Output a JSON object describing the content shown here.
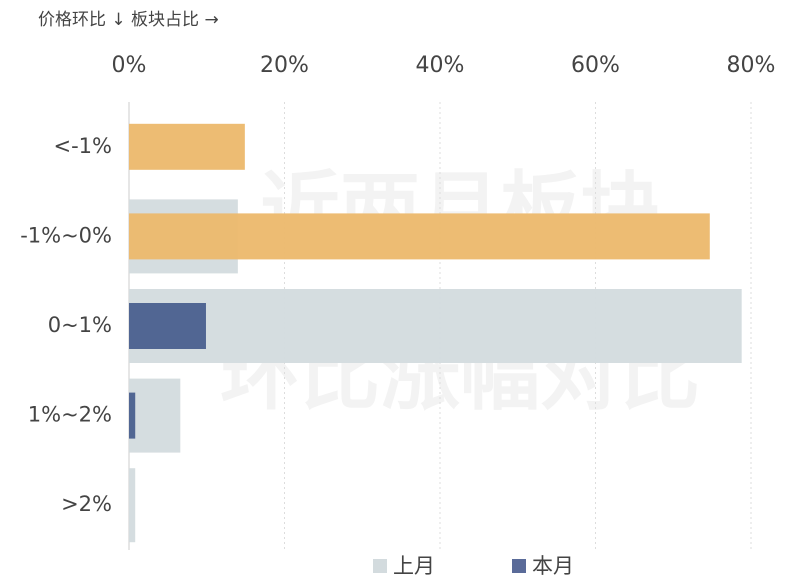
{
  "chart_data": {
    "type": "bar",
    "orientation": "horizontal",
    "axis_title": "价格环比 ↓  板块占比 →",
    "watermark": [
      "近两月板块",
      "环比涨幅对比"
    ],
    "categories": [
      "<-1%",
      "-1%~0%",
      "0~1%",
      "1%~2%",
      ">2%"
    ],
    "series": [
      {
        "name": "上月",
        "color": "#d3dbde",
        "values": [
          0,
          14,
          78.8,
          6.6,
          0.8
        ]
      },
      {
        "name": "本月",
        "color": "#5a6b99",
        "colors": [
          "#ecb86b",
          "#ecb86b",
          "#4a5f8e",
          "#4a5f8e",
          "#4a5f8e"
        ],
        "values": [
          14.9,
          74.7,
          9.9,
          0.8,
          0
        ]
      }
    ],
    "xlim": [
      0,
      80
    ],
    "xticks": [
      {
        "value": 0,
        "label": "0%"
      },
      {
        "value": 20,
        "label": "20%"
      },
      {
        "value": 40,
        "label": "40%"
      },
      {
        "value": 60,
        "label": "60%"
      },
      {
        "value": 80,
        "label": "80%"
      }
    ],
    "grid": true,
    "legend": "bottom"
  }
}
